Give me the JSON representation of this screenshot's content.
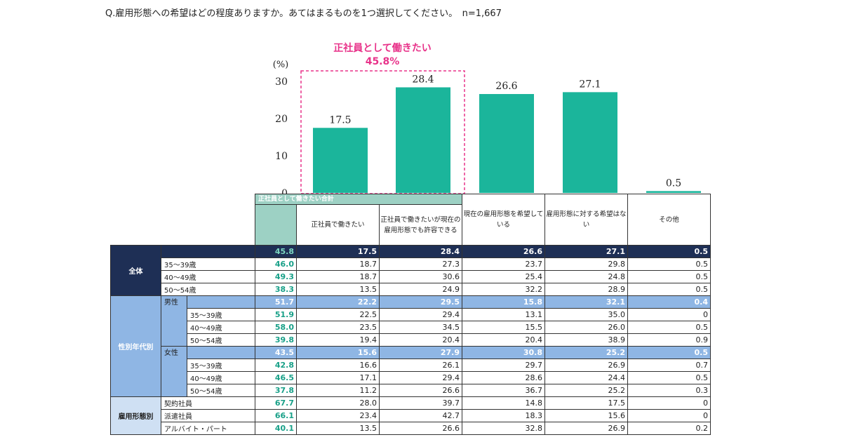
{
  "question": "Q.雇用形態への希望はどの程度ありますか。あてはまるものを1つ選択してください。　n=1,667",
  "callout": {
    "title": "正社員として働きたい",
    "value": "45.8%",
    "color": "#e8338a"
  },
  "colors": {
    "bar": "#1bb59b",
    "total_header": "#9dd1c4",
    "total_text": "#18a088",
    "navy_row": "#1e2f55",
    "blue_row": "#8fb6e4"
  },
  "chart_data": {
    "type": "bar",
    "ylabel": "(%)",
    "ylim": [
      0,
      30
    ],
    "yticks": [
      "0",
      "10",
      "20",
      "30"
    ],
    "categories": [
      "正社員で働きたい",
      "正社員で働きたいが現在の雇用形態でも許容できる",
      "現在の雇用形態を希望している",
      "雇用形態に対する希望はない",
      "その他"
    ],
    "values": [
      17.5,
      28.4,
      26.6,
      27.1,
      0.5
    ],
    "value_labels": [
      "17.5",
      "28.4",
      "26.6",
      "27.1",
      "0.5"
    ]
  },
  "table": {
    "group_header": "正社員として働きたい合計",
    "headers": [
      "正社員で働きたい",
      "正社員で働きたいが現在の雇用形態でも許容できる",
      "現在の雇用形態を希望している",
      "雇用形態に対する希望はない",
      "その他"
    ],
    "groups": {
      "all": "全体",
      "sex_age": "性別年代別",
      "employment": "雇用形態別"
    },
    "sub": {
      "male": "男性",
      "female": "女性"
    },
    "rows": {
      "all": [
        "45.8",
        "17.5",
        "28.4",
        "26.6",
        "27.1",
        "0.5"
      ],
      "all_35": {
        "label": "35～39歳",
        "values": [
          "46.0",
          "18.7",
          "27.3",
          "23.7",
          "29.8",
          "0.5"
        ]
      },
      "all_40": {
        "label": "40～49歳",
        "values": [
          "49.3",
          "18.7",
          "30.6",
          "25.4",
          "24.8",
          "0.5"
        ]
      },
      "all_50": {
        "label": "50～54歳",
        "values": [
          "38.3",
          "13.5",
          "24.9",
          "32.2",
          "28.9",
          "0.5"
        ]
      },
      "male": [
        "51.7",
        "22.2",
        "29.5",
        "15.8",
        "32.1",
        "0.4"
      ],
      "male_35": {
        "label": "35～39歳",
        "values": [
          "51.9",
          "22.5",
          "29.4",
          "13.1",
          "35.0",
          "0"
        ]
      },
      "male_40": {
        "label": "40～49歳",
        "values": [
          "58.0",
          "23.5",
          "34.5",
          "15.5",
          "26.0",
          "0.5"
        ]
      },
      "male_50": {
        "label": "50～54歳",
        "values": [
          "39.8",
          "19.4",
          "20.4",
          "20.4",
          "38.9",
          "0.9"
        ]
      },
      "female": [
        "43.5",
        "15.6",
        "27.9",
        "30.8",
        "25.2",
        "0.5"
      ],
      "female_35": {
        "label": "35～39歳",
        "values": [
          "42.8",
          "16.6",
          "26.1",
          "29.7",
          "26.9",
          "0.7"
        ]
      },
      "female_40": {
        "label": "40～49歳",
        "values": [
          "46.5",
          "17.1",
          "29.4",
          "28.6",
          "24.4",
          "0.5"
        ]
      },
      "female_50": {
        "label": "50～54歳",
        "values": [
          "37.8",
          "11.2",
          "26.6",
          "36.7",
          "25.2",
          "0.3"
        ]
      },
      "emp_contract": {
        "label": "契約社員",
        "values": [
          "67.7",
          "28.0",
          "39.7",
          "14.8",
          "17.5",
          "0"
        ]
      },
      "emp_dispatch": {
        "label": "派遣社員",
        "values": [
          "66.1",
          "23.4",
          "42.7",
          "18.3",
          "15.6",
          "0"
        ]
      },
      "emp_parttime": {
        "label": "アルバイト・パート",
        "values": [
          "40.1",
          "13.5",
          "26.6",
          "32.8",
          "26.9",
          "0.2"
        ]
      }
    }
  }
}
